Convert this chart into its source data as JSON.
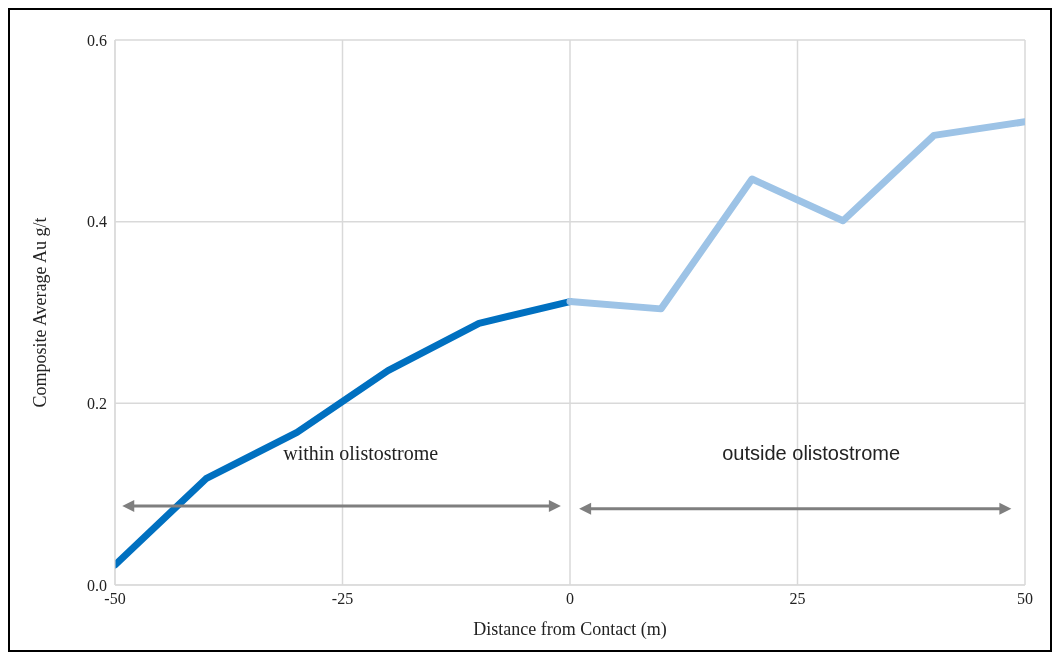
{
  "chart_data": {
    "type": "line",
    "xlabel": "Distance from Contact (m)",
    "ylabel": "Composite Average Au g/t",
    "xlim": [
      -50,
      50
    ],
    "xticks": [
      -50,
      -25,
      0,
      25,
      50
    ],
    "ylim": [
      0,
      0.6
    ],
    "yticks": [
      {
        "value": 0,
        "label": "0.0"
      },
      {
        "value": 0.2,
        "label": "0.2"
      },
      {
        "value": 0.4,
        "label": "0.4"
      },
      {
        "value": 0.6,
        "label": "0.6"
      }
    ],
    "grid": true,
    "marker": "none",
    "line_style": "solid",
    "series": [
      {
        "color": "#0070c0",
        "x": [
          -50,
          -40,
          -30,
          -20,
          -10,
          0
        ],
        "values": [
          0.022,
          0.117,
          0.168,
          0.236,
          0.288,
          0.312
        ]
      },
      {
        "color": "#9dc3e6",
        "x": [
          0,
          10,
          20,
          30,
          40,
          50
        ],
        "values": [
          0.312,
          0.304,
          0.447,
          0.401,
          0.495,
          0.51
        ]
      }
    ],
    "annotations": [
      "within olistostrome",
      "outside olistostrome"
    ]
  }
}
